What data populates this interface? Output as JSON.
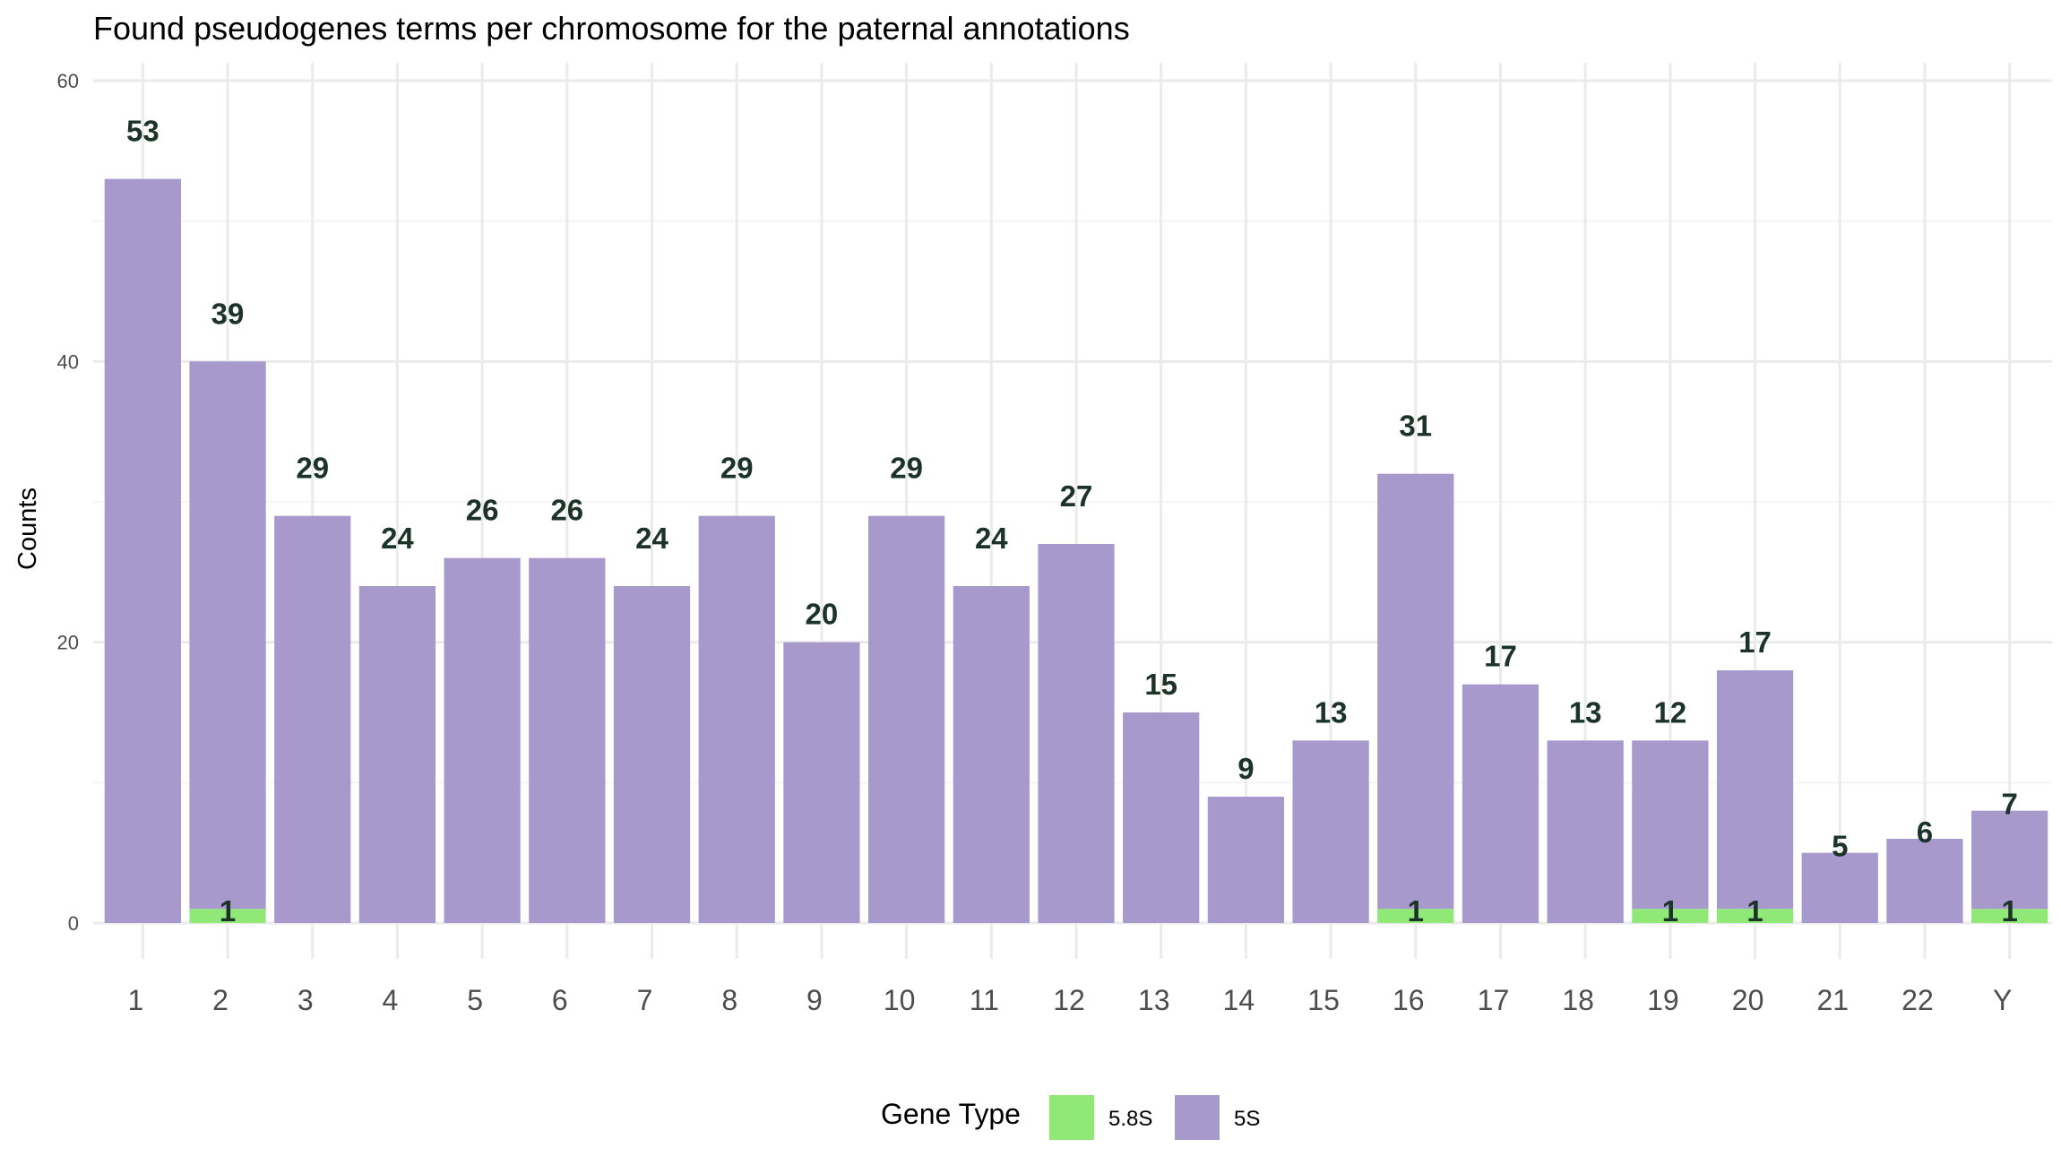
{
  "chart_data": {
    "type": "bar",
    "stacked": true,
    "title": "Found pseudogenes terms per chromosome for the paternal annotations",
    "xlabel": "",
    "ylabel": "Counts",
    "ylim": [
      0,
      60
    ],
    "yticks": [
      0,
      20,
      40,
      60
    ],
    "grid": true,
    "legend_position": "bottom",
    "categories": [
      "1",
      "2",
      "3",
      "4",
      "5",
      "6",
      "7",
      "8",
      "9",
      "10",
      "11",
      "12",
      "13",
      "14",
      "15",
      "16",
      "17",
      "18",
      "19",
      "20",
      "21",
      "22",
      "Y"
    ],
    "series": [
      {
        "name": "5.8S",
        "color": "#90e877",
        "values": [
          0,
          1,
          0,
          0,
          0,
          0,
          0,
          0,
          0,
          0,
          0,
          0,
          0,
          0,
          0,
          1,
          0,
          0,
          1,
          1,
          0,
          0,
          1
        ]
      },
      {
        "name": "5S",
        "color": "#a899cc",
        "values": [
          53,
          39,
          29,
          24,
          26,
          26,
          24,
          29,
          20,
          29,
          24,
          27,
          15,
          9,
          13,
          31,
          17,
          13,
          12,
          17,
          5,
          6,
          7
        ]
      }
    ],
    "legend": {
      "title": "Gene Type",
      "items": [
        "5.8S",
        "5S"
      ]
    }
  }
}
